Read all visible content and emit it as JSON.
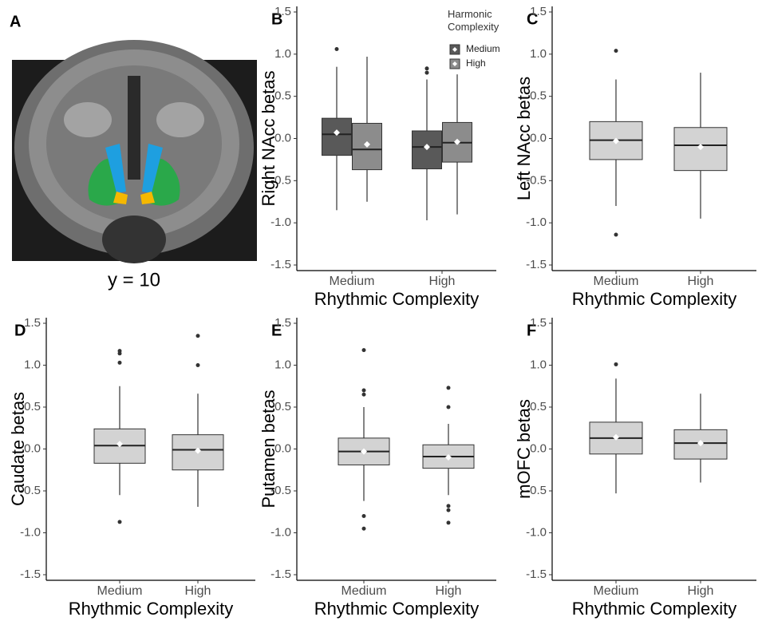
{
  "panel_a": {
    "label": "A",
    "caption": "y = 10"
  },
  "chart_data": [
    {
      "type": "box",
      "label": "B",
      "ylabel": "Right NAcc betas",
      "xlabel": "Rhythmic Complexity",
      "categories": [
        "Medium",
        "High"
      ],
      "ylim": [
        -1.5,
        1.5
      ],
      "yticks": [
        -1.5,
        {
          "value": -1,
          "label": "-1.0"
        },
        -0.5,
        {
          "value": 0,
          "label": "0.0"
        },
        0.5,
        {
          "value": 1,
          "label": "1.0"
        },
        1.5
      ],
      "legend_title": "Harmonic Complexity",
      "series": [
        {
          "name": "Medium",
          "color": "#595959",
          "values": [
            {
              "whisker_low": -0.85,
              "q1": -0.2,
              "median": 0.05,
              "q3": 0.24,
              "whisker_high": 0.85,
              "mean": 0.07,
              "outliers": [
                1.06
              ]
            },
            {
              "whisker_low": -0.97,
              "q1": -0.36,
              "median": -0.1,
              "q3": 0.09,
              "whisker_high": 0.7,
              "mean": -0.1,
              "outliers": [
                0.78,
                0.83
              ]
            }
          ]
        },
        {
          "name": "High",
          "color": "#8c8c8c",
          "values": [
            {
              "whisker_low": -0.75,
              "q1": -0.37,
              "median": -0.13,
              "q3": 0.18,
              "whisker_high": 0.97,
              "mean": -0.07,
              "outliers": []
            },
            {
              "whisker_low": -0.9,
              "q1": -0.28,
              "median": -0.05,
              "q3": 0.19,
              "whisker_high": 0.76,
              "mean": -0.04,
              "outliers": []
            }
          ]
        }
      ]
    },
    {
      "type": "box",
      "label": "C",
      "ylabel": "Left NAcc betas",
      "xlabel": "Rhythmic Complexity",
      "categories": [
        "Medium",
        "High"
      ],
      "ylim": [
        -1.5,
        1.5
      ],
      "yticks": [
        -1.5,
        {
          "value": -1,
          "label": "-1.0"
        },
        -0.5,
        {
          "value": 0,
          "label": "0.0"
        },
        0.5,
        {
          "value": 1,
          "label": "1.0"
        },
        1.5
      ],
      "series": [
        {
          "color": "#d3d3d3",
          "values": [
            {
              "whisker_low": -0.8,
              "q1": -0.25,
              "median": -0.02,
              "q3": 0.2,
              "whisker_high": 0.7,
              "mean": -0.03,
              "outliers": [
                1.04,
                -1.14
              ]
            },
            {
              "whisker_low": -0.95,
              "q1": -0.38,
              "median": -0.08,
              "q3": 0.13,
              "whisker_high": 0.78,
              "mean": -0.1,
              "outliers": []
            }
          ]
        }
      ]
    },
    {
      "type": "box",
      "label": "D",
      "ylabel": "Caudate betas",
      "xlabel": "Rhythmic Complexity",
      "categories": [
        "Medium",
        "High"
      ],
      "ylim": [
        -1.5,
        1.5
      ],
      "yticks": [
        -1.5,
        {
          "value": -1,
          "label": "-1.0"
        },
        -0.5,
        {
          "value": 0,
          "label": "0.0"
        },
        0.5,
        {
          "value": 1,
          "label": "1.0"
        },
        1.5
      ],
      "series": [
        {
          "color": "#d3d3d3",
          "values": [
            {
              "whisker_low": -0.55,
              "q1": -0.17,
              "median": 0.04,
              "q3": 0.24,
              "whisker_high": 0.75,
              "mean": 0.06,
              "outliers": [
                1.03,
                1.14,
                1.17,
                -0.87
              ]
            },
            {
              "whisker_low": -0.69,
              "q1": -0.25,
              "median": -0.01,
              "q3": 0.17,
              "whisker_high": 0.66,
              "mean": -0.02,
              "outliers": [
                1.0,
                1.35
              ]
            }
          ]
        }
      ]
    },
    {
      "type": "box",
      "label": "E",
      "ylabel": "Putamen betas",
      "xlabel": "Rhythmic Complexity",
      "categories": [
        "Medium",
        "High"
      ],
      "ylim": [
        -1.5,
        1.5
      ],
      "yticks": [
        -1.5,
        {
          "value": -1,
          "label": "-1.0"
        },
        -0.5,
        {
          "value": 0,
          "label": "0.0"
        },
        0.5,
        {
          "value": 1,
          "label": "1.0"
        },
        1.5
      ],
      "series": [
        {
          "color": "#d3d3d3",
          "values": [
            {
              "whisker_low": -0.62,
              "q1": -0.19,
              "median": -0.03,
              "q3": 0.13,
              "whisker_high": 0.5,
              "mean": -0.03,
              "outliers": [
                0.65,
                0.7,
                1.18,
                -0.8,
                -0.95
              ]
            },
            {
              "whisker_low": -0.55,
              "q1": -0.23,
              "median": -0.09,
              "q3": 0.05,
              "whisker_high": 0.3,
              "mean": -0.1,
              "outliers": [
                0.5,
                0.73,
                -0.68,
                -0.73,
                -0.88
              ]
            }
          ]
        }
      ]
    },
    {
      "type": "box",
      "label": "F",
      "ylabel": "mOFC betas",
      "xlabel": "Rhythmic Complexity",
      "categories": [
        "Medium",
        "High"
      ],
      "ylim": [
        -1.5,
        1.5
      ],
      "yticks": [
        -1.5,
        {
          "value": -1,
          "label": "-1.0"
        },
        -0.5,
        {
          "value": 0,
          "label": "0.0"
        },
        0.5,
        {
          "value": 1,
          "label": "1.0"
        },
        1.5
      ],
      "series": [
        {
          "color": "#d3d3d3",
          "values": [
            {
              "whisker_low": -0.53,
              "q1": -0.06,
              "median": 0.13,
              "q3": 0.32,
              "whisker_high": 0.84,
              "mean": 0.14,
              "outliers": [
                1.01
              ]
            },
            {
              "whisker_low": -0.4,
              "q1": -0.12,
              "median": 0.07,
              "q3": 0.23,
              "whisker_high": 0.66,
              "mean": 0.07,
              "outliers": []
            }
          ]
        }
      ]
    }
  ]
}
